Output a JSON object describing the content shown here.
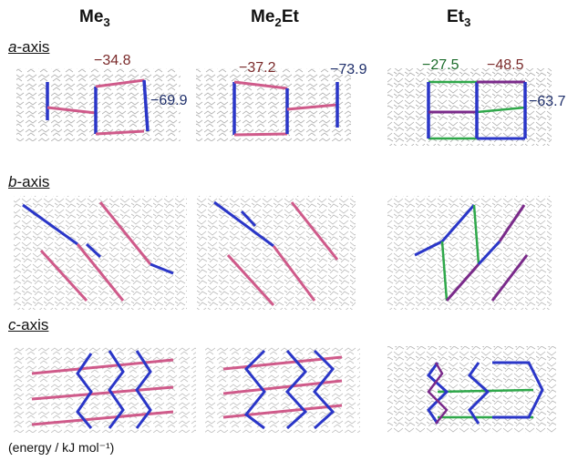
{
  "columns": [
    {
      "main": "Me",
      "sub": "3",
      "tail": ""
    },
    {
      "main": "Me",
      "sub": "2",
      "tail": "Et"
    },
    {
      "main": "Et",
      "sub": "3",
      "tail": ""
    }
  ],
  "rows": [
    {
      "axis": "a",
      "suffix": "-axis"
    },
    {
      "axis": "b",
      "suffix": "-axis"
    },
    {
      "axis": "c",
      "suffix": "-axis"
    }
  ],
  "energies": {
    "me3_red": "−34.8",
    "me3_blue": "−69.9",
    "me2et_red": "−37.2",
    "me2et_blue": "−73.9",
    "et3_green": "−27.5",
    "et3_red": "−48.5",
    "et3_blue": "−63.7"
  },
  "footer": "(energy / kJ mol⁻¹)",
  "colors": {
    "pink": "#cf5a8a",
    "blue": "#2a36c8",
    "green": "#2fa84a",
    "purple": "#7a2a8a",
    "molecule": "#9a9a9a"
  }
}
